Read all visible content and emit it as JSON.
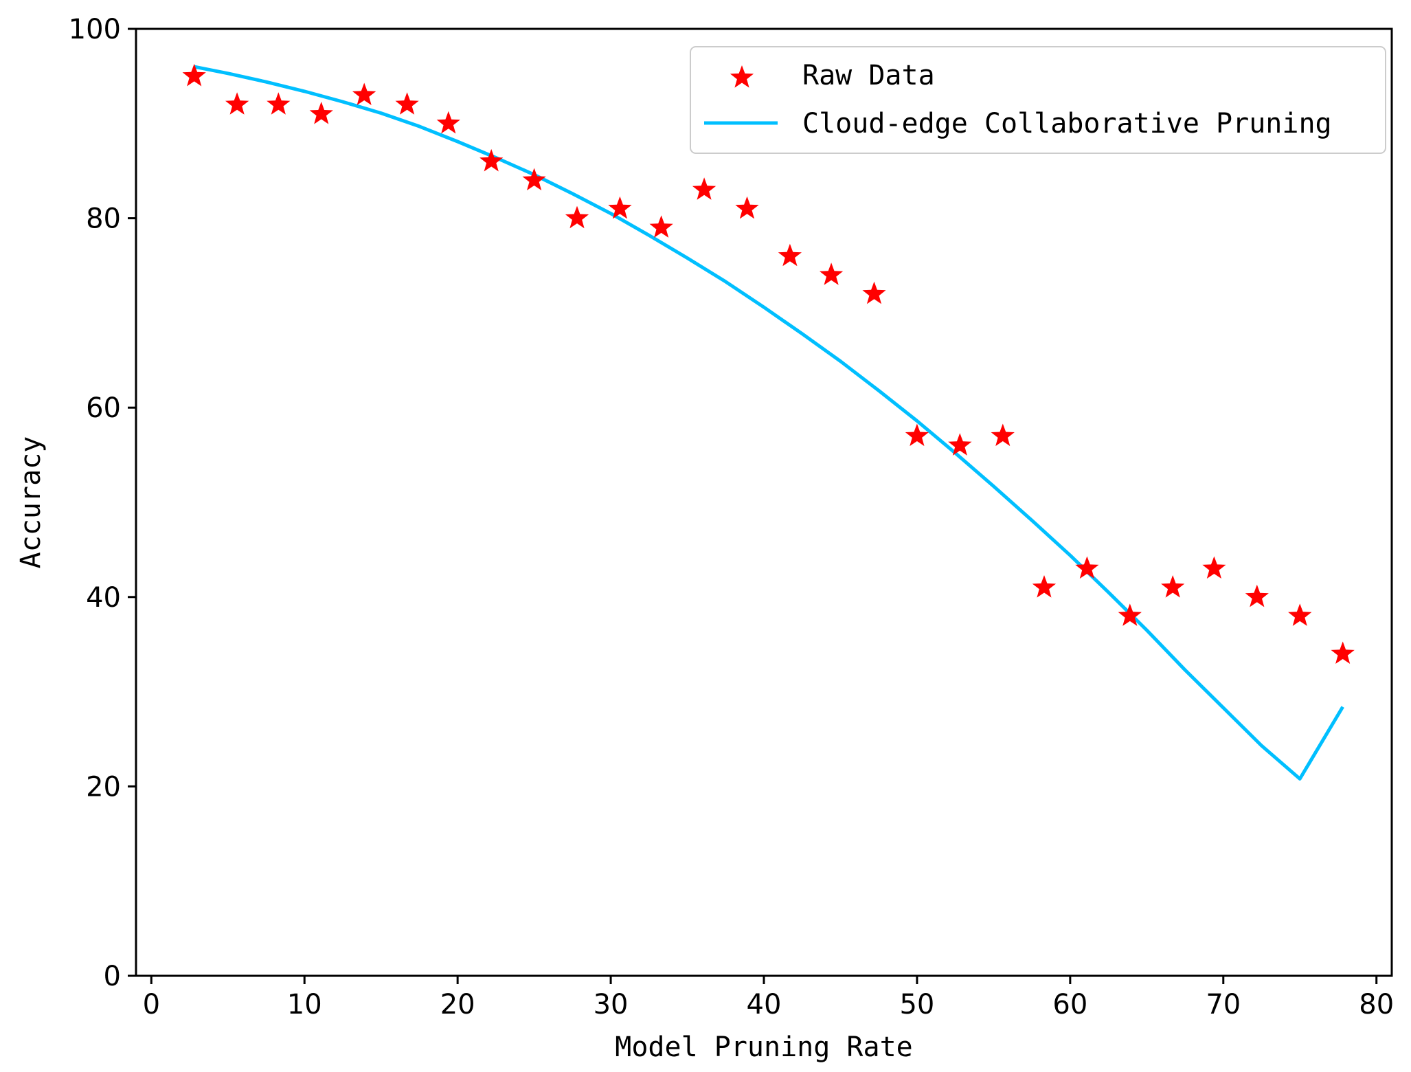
{
  "chart_data": {
    "type": "scatter",
    "title": "",
    "xlabel": "Model Pruning Rate",
    "ylabel": "Accuracy",
    "xlim": [
      -1,
      81
    ],
    "ylim": [
      0,
      100
    ],
    "xticks": [
      0,
      10,
      20,
      30,
      40,
      50,
      60,
      70,
      80
    ],
    "yticks": [
      0,
      20,
      40,
      60,
      80,
      100
    ],
    "xtick_labels": [
      "0",
      "10",
      "20",
      "30",
      "40",
      "50",
      "60",
      "70",
      "80"
    ],
    "ytick_labels": [
      "0",
      "20",
      "40",
      "60",
      "80",
      "100"
    ],
    "grid": false,
    "legend_position": "top-right",
    "series": [
      {
        "name": "Raw Data",
        "kind": "scatter",
        "marker": "star",
        "color": "#ff0000",
        "x": [
          2.8,
          5.6,
          8.3,
          11.1,
          13.9,
          16.7,
          19.4,
          22.2,
          25.0,
          27.8,
          30.6,
          33.3,
          36.1,
          38.9,
          41.7,
          44.4,
          47.2,
          50.0,
          52.8,
          55.6,
          58.3,
          61.1,
          63.9,
          66.7,
          69.4,
          72.2,
          75.0,
          77.8
        ],
        "y": [
          95,
          92,
          92,
          91,
          93,
          92,
          90,
          86,
          84,
          80,
          81,
          79,
          83,
          81,
          76,
          74,
          72,
          57,
          56,
          57,
          41,
          43,
          38,
          41,
          43,
          40,
          38,
          34
        ]
      },
      {
        "name": "Cloud-edge Collaborative Pruning",
        "kind": "line",
        "color": "#00bfff",
        "x": [
          2.8,
          5.0,
          7.5,
          10.0,
          12.5,
          15.0,
          17.5,
          20.0,
          22.5,
          25.0,
          27.5,
          30.0,
          32.5,
          35.0,
          37.5,
          40.0,
          42.5,
          45.0,
          47.5,
          50.0,
          52.5,
          55.0,
          57.5,
          60.0,
          62.5,
          65.0,
          67.5,
          70.0,
          72.5,
          75.0,
          77.8
        ],
        "y": [
          96.0,
          95.3,
          94.4,
          93.4,
          92.3,
          91.1,
          89.7,
          88.1,
          86.4,
          84.6,
          82.6,
          80.5,
          78.2,
          75.8,
          73.3,
          70.6,
          67.8,
          64.9,
          61.8,
          58.6,
          55.2,
          51.7,
          48.1,
          44.4,
          40.5,
          36.5,
          32.3,
          28.3,
          24.3,
          20.8,
          28.4
        ]
      }
    ]
  }
}
